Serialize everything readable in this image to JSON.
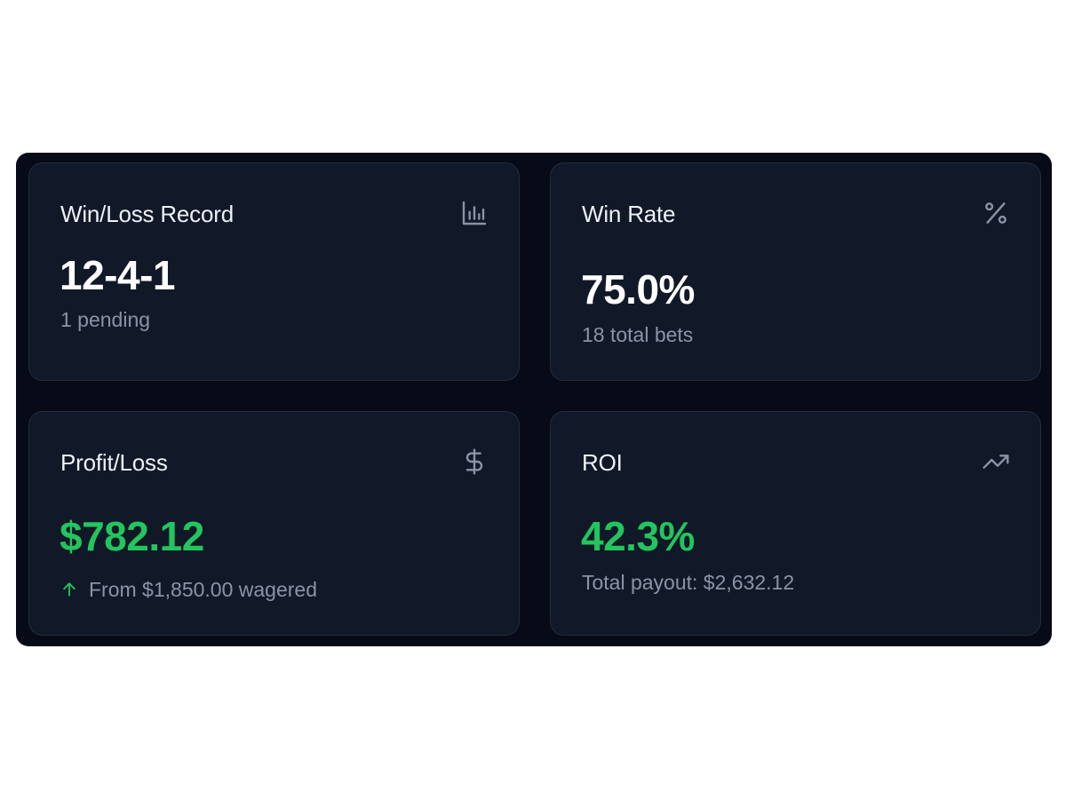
{
  "colors": {
    "background": "#070b18",
    "card": "#111827",
    "card_border": "#232c3c",
    "title_text": "#eef1f6",
    "muted_text": "#8b94a6",
    "positive": "#22c55e"
  },
  "cards": [
    {
      "title": "Win/Loss Record",
      "icon": "bar-chart-icon",
      "value": "12-4-1",
      "subtitle": "1 pending"
    },
    {
      "title": "Win Rate",
      "icon": "percent-icon",
      "value": "75.0%",
      "subtitle": "18 total bets"
    },
    {
      "title": "Profit/Loss",
      "icon": "dollar-icon",
      "value": "$782.12",
      "value_color": "#22c55e",
      "subtitle_icon": "arrow-up-icon",
      "subtitle": "From $1,850.00 wagered"
    },
    {
      "title": "ROI",
      "icon": "trending-up-icon",
      "value": "42.3%",
      "value_color": "#22c55e",
      "subtitle": "Total payout: $2,632.12"
    }
  ]
}
